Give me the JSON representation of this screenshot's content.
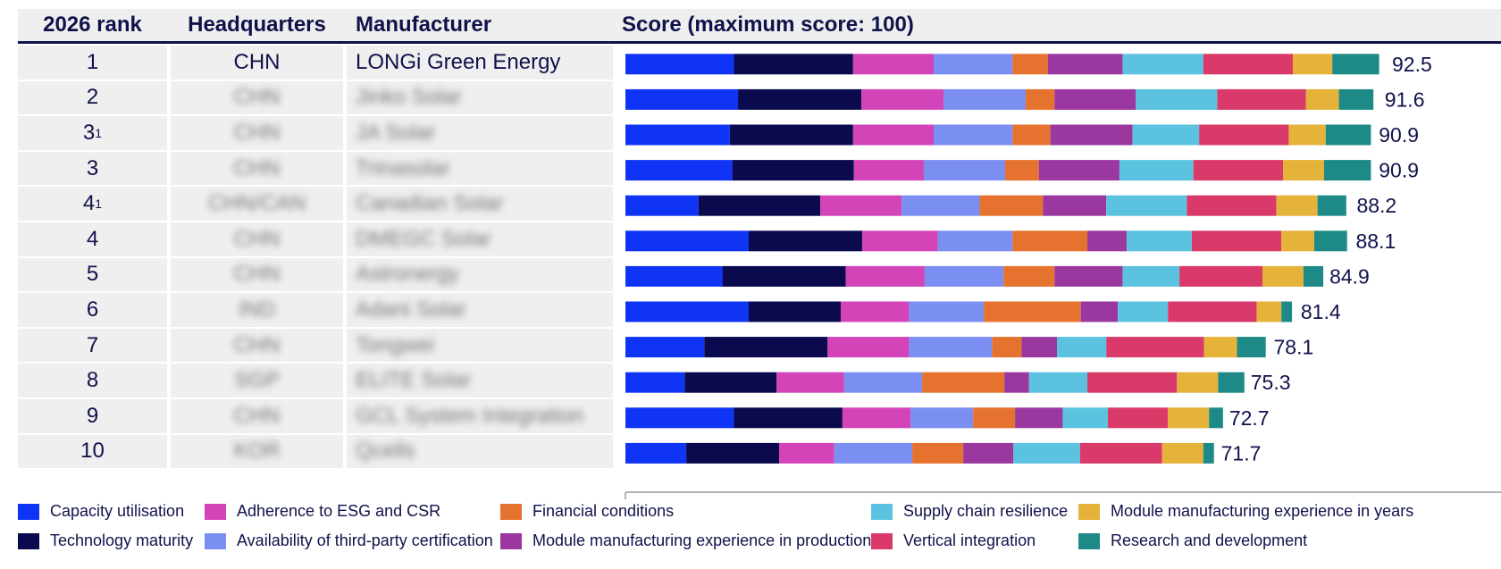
{
  "table": {
    "headers": {
      "rank": "2026 rank",
      "hq": "Headquarters",
      "manufacturer": "Manufacturer"
    },
    "rows": [
      {
        "rank": "1",
        "sup": "",
        "hq": "CHN",
        "manufacturer": "LONGi Green Energy",
        "hidden": false
      },
      {
        "rank": "2",
        "sup": "",
        "hq": "CHN",
        "manufacturer": "Jinko Solar",
        "hidden": true
      },
      {
        "rank": "3",
        "sup": "1",
        "hq": "CHN",
        "manufacturer": "JA Solar",
        "hidden": true
      },
      {
        "rank": "3",
        "sup": "",
        "hq": "CHN",
        "manufacturer": "Trinasolar",
        "hidden": true
      },
      {
        "rank": "4",
        "sup": "1",
        "hq": "CHN/CAN",
        "manufacturer": "Canadian Solar",
        "hidden": true
      },
      {
        "rank": "4",
        "sup": "",
        "hq": "CHN",
        "manufacturer": "DMEGC Solar",
        "hidden": true
      },
      {
        "rank": "5",
        "sup": "",
        "hq": "CHN",
        "manufacturer": "Astronergy",
        "hidden": true
      },
      {
        "rank": "6",
        "sup": "",
        "hq": "IND",
        "manufacturer": "Adani Solar",
        "hidden": true
      },
      {
        "rank": "7",
        "sup": "",
        "hq": "CHN",
        "manufacturer": "Tongwei",
        "hidden": true
      },
      {
        "rank": "8",
        "sup": "",
        "hq": "SGP",
        "manufacturer": "ELITE Solar",
        "hidden": true
      },
      {
        "rank": "9",
        "sup": "",
        "hq": "CHN",
        "manufacturer": "GCL System Integration",
        "hidden": true
      },
      {
        "rank": "10",
        "sup": "",
        "hq": "KOR",
        "manufacturer": "Qcells",
        "hidden": true
      }
    ]
  },
  "chart_data": {
    "type": "bar",
    "orientation": "horizontal",
    "stacked": true,
    "title": "Score (maximum score: 100)",
    "xlim": [
      0,
      100
    ],
    "grid": false,
    "legend_position": "bottom",
    "categories": [
      "1",
      "2",
      "3¹",
      "3",
      "4¹",
      "4",
      "5",
      "6",
      "7",
      "8",
      "9",
      "10"
    ],
    "totals": [
      92.5,
      91.6,
      90.9,
      90.9,
      88.2,
      88.1,
      84.9,
      81.4,
      78.1,
      75.3,
      72.7,
      71.7
    ],
    "series": [
      {
        "name": "Capacity utilisation",
        "color": "#1034f5",
        "values": [
          13.2,
          13.7,
          12.7,
          13.0,
          8.9,
          15.0,
          11.8,
          15.0,
          9.6,
          7.2,
          13.2,
          7.4
        ]
      },
      {
        "name": "Technology maturity",
        "color": "#0b0a4f",
        "values": [
          14.5,
          15.0,
          15.0,
          14.8,
          14.8,
          13.8,
          15.0,
          11.2,
          15.0,
          11.2,
          13.2,
          11.3
        ]
      },
      {
        "name": "Adherence to ESG and CSR",
        "color": "#d244b8",
        "values": [
          9.8,
          10.0,
          9.8,
          8.5,
          9.9,
          9.2,
          9.6,
          8.3,
          9.9,
          8.2,
          8.3,
          6.7
        ]
      },
      {
        "name": "Availability of third-party certification",
        "color": "#7b8ef2",
        "values": [
          9.6,
          10.0,
          9.6,
          9.9,
          9.5,
          9.1,
          9.6,
          9.1,
          10.1,
          9.5,
          7.6,
          9.5
        ]
      },
      {
        "name": "Financial conditions",
        "color": "#e5722e",
        "values": [
          4.3,
          3.5,
          4.6,
          4.1,
          7.7,
          9.1,
          6.2,
          11.8,
          3.6,
          10.0,
          5.1,
          6.2
        ]
      },
      {
        "name": "Module manufacturing experience in production",
        "color": "#9a38a0",
        "values": [
          9.1,
          9.9,
          10.0,
          9.8,
          7.7,
          4.8,
          8.3,
          4.5,
          4.3,
          3.0,
          5.8,
          6.1
        ]
      },
      {
        "name": "Supply chain resilience",
        "color": "#5bc3df",
        "values": [
          9.8,
          9.9,
          8.1,
          9.0,
          9.8,
          7.9,
          6.9,
          6.1,
          6.0,
          7.1,
          5.5,
          8.1
        ]
      },
      {
        "name": "Vertical integration",
        "color": "#d93a6a",
        "values": [
          10.9,
          10.8,
          10.9,
          10.9,
          10.9,
          10.9,
          10.1,
          10.8,
          11.9,
          10.9,
          7.3,
          10.0
        ]
      },
      {
        "name": "Module manufacturing experience in years",
        "color": "#e5b23a",
        "values": [
          4.8,
          4.0,
          4.5,
          5.0,
          5.0,
          4.0,
          5.0,
          3.0,
          4.0,
          5.0,
          5.0,
          5.0
        ]
      },
      {
        "name": "Research and development",
        "color": "#1e8a87",
        "values": [
          5.7,
          4.2,
          5.5,
          5.7,
          3.5,
          4.0,
          2.4,
          1.3,
          3.5,
          3.2,
          1.7,
          1.3
        ]
      }
    ]
  }
}
